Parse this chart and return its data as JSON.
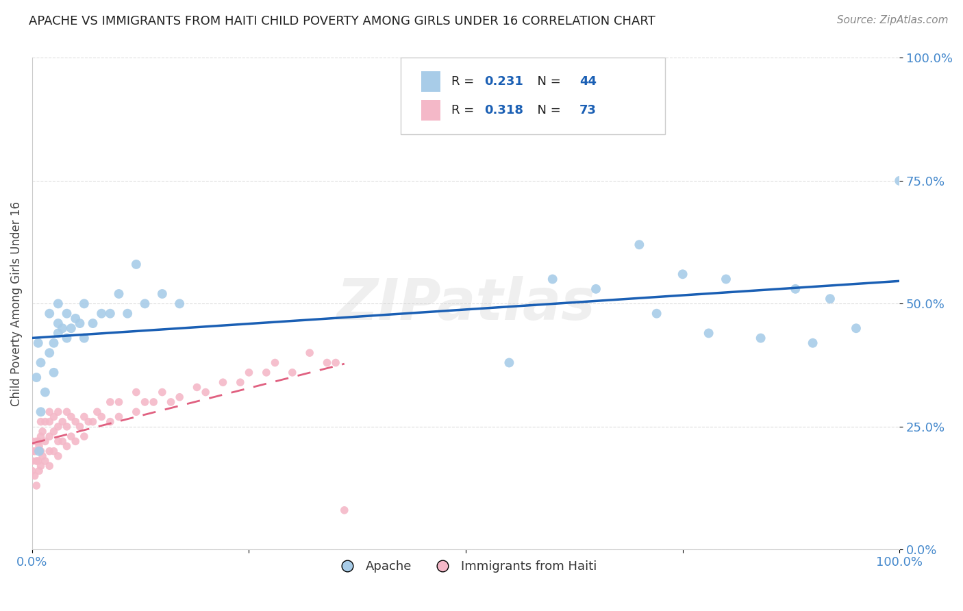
{
  "title": "APACHE VS IMMIGRANTS FROM HAITI CHILD POVERTY AMONG GIRLS UNDER 16 CORRELATION CHART",
  "source": "Source: ZipAtlas.com",
  "ylabel": "Child Poverty Among Girls Under 16",
  "xlim": [
    0,
    1
  ],
  "ylim": [
    0,
    1
  ],
  "xticks": [
    0.0,
    0.25,
    0.5,
    0.75,
    1.0
  ],
  "yticks": [
    0.0,
    0.25,
    0.5,
    0.75,
    1.0
  ],
  "xticklabels": [
    "0.0%",
    "",
    "",
    "",
    "100.0%"
  ],
  "yticklabels_right": [
    "0.0%",
    "25.0%",
    "50.0%",
    "75.0%",
    "100.0%"
  ],
  "apache_color": "#a8cce8",
  "haiti_color": "#f4b8c8",
  "apache_R": 0.231,
  "apache_N": 44,
  "haiti_R": 0.318,
  "haiti_N": 73,
  "legend_label_apache": "Apache",
  "legend_label_haiti": "Immigrants from Haiti",
  "watermark": "ZIPatlas",
  "watermark_color": "#cccccc",
  "background_color": "#ffffff",
  "grid_color": "#dddddd",
  "title_color": "#222222",
  "axis_color": "#4488cc",
  "trend_blue_color": "#1a5fb4",
  "trend_pink_color": "#e06080",
  "apache_x": [
    0.005,
    0.007,
    0.008,
    0.01,
    0.01,
    0.015,
    0.02,
    0.02,
    0.025,
    0.025,
    0.03,
    0.03,
    0.03,
    0.035,
    0.04,
    0.04,
    0.045,
    0.05,
    0.055,
    0.06,
    0.06,
    0.07,
    0.08,
    0.09,
    0.1,
    0.11,
    0.12,
    0.13,
    0.15,
    0.17,
    0.55,
    0.6,
    0.65,
    0.7,
    0.72,
    0.75,
    0.78,
    0.8,
    0.84,
    0.88,
    0.9,
    0.92,
    0.95,
    1.0
  ],
  "apache_y": [
    0.35,
    0.42,
    0.2,
    0.38,
    0.28,
    0.32,
    0.4,
    0.48,
    0.42,
    0.36,
    0.44,
    0.46,
    0.5,
    0.45,
    0.43,
    0.48,
    0.45,
    0.47,
    0.46,
    0.43,
    0.5,
    0.46,
    0.48,
    0.48,
    0.52,
    0.48,
    0.58,
    0.5,
    0.52,
    0.5,
    0.38,
    0.55,
    0.53,
    0.62,
    0.48,
    0.56,
    0.44,
    0.55,
    0.43,
    0.53,
    0.42,
    0.51,
    0.45,
    0.75
  ],
  "haiti_x": [
    0.0,
    0.0,
    0.0,
    0.0,
    0.003,
    0.003,
    0.005,
    0.005,
    0.005,
    0.007,
    0.007,
    0.008,
    0.008,
    0.01,
    0.01,
    0.01,
    0.01,
    0.012,
    0.012,
    0.015,
    0.015,
    0.015,
    0.02,
    0.02,
    0.02,
    0.02,
    0.02,
    0.025,
    0.025,
    0.025,
    0.03,
    0.03,
    0.03,
    0.03,
    0.035,
    0.035,
    0.04,
    0.04,
    0.04,
    0.045,
    0.045,
    0.05,
    0.05,
    0.055,
    0.06,
    0.06,
    0.065,
    0.07,
    0.075,
    0.08,
    0.09,
    0.09,
    0.1,
    0.1,
    0.12,
    0.12,
    0.13,
    0.14,
    0.15,
    0.16,
    0.17,
    0.19,
    0.2,
    0.22,
    0.24,
    0.25,
    0.27,
    0.28,
    0.3,
    0.32,
    0.34,
    0.35,
    0.36
  ],
  "haiti_y": [
    0.16,
    0.18,
    0.2,
    0.22,
    0.15,
    0.2,
    0.13,
    0.18,
    0.22,
    0.18,
    0.22,
    0.16,
    0.21,
    0.17,
    0.2,
    0.23,
    0.26,
    0.19,
    0.24,
    0.18,
    0.22,
    0.26,
    0.17,
    0.2,
    0.23,
    0.26,
    0.28,
    0.2,
    0.24,
    0.27,
    0.19,
    0.22,
    0.25,
    0.28,
    0.22,
    0.26,
    0.21,
    0.25,
    0.28,
    0.23,
    0.27,
    0.22,
    0.26,
    0.25,
    0.23,
    0.27,
    0.26,
    0.26,
    0.28,
    0.27,
    0.26,
    0.3,
    0.27,
    0.3,
    0.28,
    0.32,
    0.3,
    0.3,
    0.32,
    0.3,
    0.31,
    0.33,
    0.32,
    0.34,
    0.34,
    0.36,
    0.36,
    0.38,
    0.36,
    0.4,
    0.38,
    0.38,
    0.08
  ],
  "marker_size_apache": 100,
  "marker_size_haiti": 70
}
